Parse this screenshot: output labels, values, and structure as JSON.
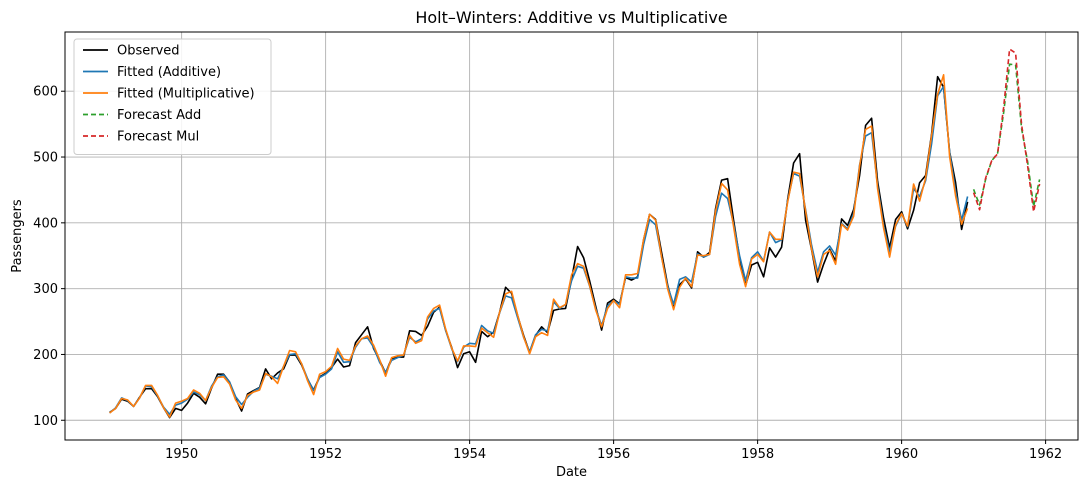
{
  "chart_data": {
    "type": "line",
    "title": "Holt–Winters: Additive vs Multiplicative",
    "xlabel": "Date",
    "ylabel": "Passengers",
    "xlim": [
      1948.38,
      1962.45
    ],
    "ylim": [
      70,
      690
    ],
    "x_ticks": [
      1950,
      1952,
      1954,
      1956,
      1958,
      1960,
      1962
    ],
    "y_ticks": [
      100,
      200,
      300,
      400,
      500,
      600
    ],
    "grid": true,
    "legend_position": "top-left",
    "series": [
      {
        "name": "Observed",
        "color": "#000000",
        "style": "solid",
        "x_start": "1949-01",
        "values": [
          112,
          118,
          132,
          129,
          121,
          135,
          148,
          148,
          136,
          119,
          104,
          118,
          115,
          126,
          141,
          135,
          125,
          149,
          170,
          170,
          158,
          133,
          114,
          140,
          145,
          150,
          178,
          163,
          172,
          178,
          199,
          199,
          184,
          162,
          146,
          166,
          171,
          180,
          193,
          181,
          183,
          218,
          230,
          242,
          209,
          191,
          172,
          194,
          196,
          196,
          236,
          235,
          229,
          243,
          264,
          272,
          237,
          211,
          180,
          201,
          204,
          188,
          235,
          227,
          234,
          264,
          302,
          293,
          259,
          229,
          203,
          229,
          242,
          233,
          267,
          269,
          270,
          315,
          364,
          347,
          312,
          274,
          237,
          278,
          284,
          277,
          317,
          313,
          318,
          374,
          413,
          405,
          355,
          306,
          271,
          306,
          315,
          301,
          356,
          348,
          355,
          422,
          465,
          467,
          404,
          347,
          305,
          336,
          340,
          318,
          362,
          348,
          363,
          435,
          491,
          505,
          404,
          359,
          310,
          337,
          360,
          342,
          406,
          396,
          420,
          472,
          548,
          559,
          463,
          407,
          362,
          405,
          417,
          391,
          419,
          461,
          472,
          535,
          622,
          606,
          508,
          461,
          390,
          432
        ]
      },
      {
        "name": "Fitted (Additive)",
        "color": "#1f77b4",
        "style": "solid",
        "x_start": "1949-01",
        "values": [
          111,
          119,
          134,
          130,
          121,
          134,
          152,
          151,
          137,
          120,
          109,
          123,
          126,
          132,
          143,
          139,
          130,
          152,
          166,
          169,
          158,
          136,
          124,
          135,
          144,
          149,
          170,
          167,
          163,
          182,
          200,
          201,
          186,
          163,
          145,
          165,
          170,
          178,
          204,
          188,
          189,
          211,
          224,
          225,
          211,
          188,
          173,
          191,
          195,
          199,
          226,
          219,
          224,
          254,
          266,
          270,
          237,
          209,
          189,
          211,
          217,
          216,
          244,
          236,
          232,
          263,
          289,
          286,
          256,
          226,
          204,
          230,
          238,
          236,
          280,
          270,
          276,
          312,
          334,
          331,
          304,
          270,
          244,
          274,
          282,
          276,
          318,
          316,
          316,
          367,
          405,
          397,
          348,
          304,
          276,
          314,
          318,
          310,
          353,
          348,
          352,
          410,
          445,
          437,
          398,
          350,
          312,
          347,
          356,
          342,
          386,
          370,
          374,
          433,
          475,
          471,
          420,
          366,
          325,
          356,
          365,
          351,
          399,
          391,
          414,
          488,
          532,
          537,
          456,
          396,
          356,
          395,
          414,
          394,
          452,
          440,
          464,
          520,
          593,
          607,
          508,
          448,
          404,
          440
        ]
      },
      {
        "name": "Fitted (Multiplicative)",
        "color": "#ff7f0e",
        "style": "solid",
        "x_start": "1949-01",
        "values": [
          111,
          118,
          133,
          131,
          121,
          134,
          153,
          153,
          138,
          119,
          105,
          126,
          129,
          133,
          146,
          141,
          130,
          150,
          165,
          166,
          155,
          131,
          118,
          138,
          143,
          146,
          171,
          166,
          156,
          182,
          206,
          204,
          186,
          160,
          139,
          170,
          174,
          182,
          209,
          193,
          191,
          213,
          224,
          228,
          214,
          192,
          167,
          195,
          198,
          199,
          229,
          217,
          221,
          257,
          270,
          275,
          239,
          210,
          190,
          213,
          213,
          212,
          240,
          233,
          226,
          264,
          292,
          296,
          260,
          227,
          201,
          227,
          233,
          229,
          284,
          271,
          276,
          321,
          338,
          334,
          305,
          268,
          242,
          270,
          282,
          271,
          321,
          321,
          323,
          375,
          413,
          404,
          348,
          300,
          268,
          302,
          316,
          303,
          351,
          350,
          352,
          418,
          460,
          450,
          394,
          337,
          303,
          345,
          352,
          341,
          386,
          375,
          375,
          431,
          477,
          475,
          418,
          360,
          318,
          352,
          358,
          337,
          398,
          389,
          410,
          486,
          542,
          547,
          452,
          392,
          348,
          397,
          414,
          395,
          459,
          433,
          468,
          533,
          595,
          625,
          501,
          441,
          398,
          422
        ]
      },
      {
        "name": "Forecast Add",
        "color": "#2ca02c",
        "style": "dashed",
        "x_start": "1961-01",
        "values": [
          451,
          427,
          466,
          494,
          506,
          567,
          641,
          640,
          543,
          493,
          425,
          466
        ]
      },
      {
        "name": "Forecast Mul",
        "color": "#d62728",
        "style": "dashed",
        "x_start": "1961-01",
        "values": [
          446,
          420,
          468,
          494,
          505,
          575,
          664,
          658,
          549,
          487,
          417,
          459
        ]
      }
    ]
  }
}
